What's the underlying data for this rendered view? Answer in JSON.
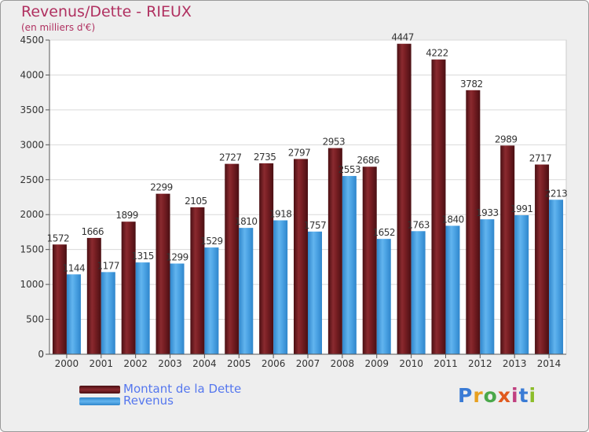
{
  "chart_data": {
    "type": "bar",
    "title": "Revenus/Dette - RIEUX",
    "subtitle": "(en milliers d'€)",
    "categories": [
      "2000",
      "2001",
      "2002",
      "2003",
      "2004",
      "2005",
      "2006",
      "2007",
      "2008",
      "2009",
      "2010",
      "2011",
      "2012",
      "2013",
      "2014"
    ],
    "series": [
      {
        "name": "Montant de la Dette",
        "color": "#7a1f24",
        "values": [
          1572,
          1666,
          1899,
          2299,
          2105,
          2727,
          2735,
          2797,
          2953,
          2686,
          4447,
          4222,
          3782,
          2989,
          2717
        ]
      },
      {
        "name": "Revenus",
        "color": "#4fa6e6",
        "values": [
          1144,
          1177,
          1315,
          1299,
          1529,
          1810,
          1918,
          1757,
          2553,
          1652,
          1763,
          1840,
          1933,
          1991,
          2213
        ]
      }
    ],
    "yticks": [
      0,
      500,
      1000,
      1500,
      2000,
      2500,
      3000,
      3500,
      4000,
      4500
    ],
    "ylim": [
      0,
      4500
    ],
    "grid": true,
    "legend": "bottom-left"
  },
  "logo": {
    "text": "Proxiti",
    "letter_colors": [
      "#3a7bd5",
      "#e8a020",
      "#4aa84a",
      "#e05a1e",
      "#c04080",
      "#3a7bd5",
      "#8cbd2a"
    ]
  }
}
